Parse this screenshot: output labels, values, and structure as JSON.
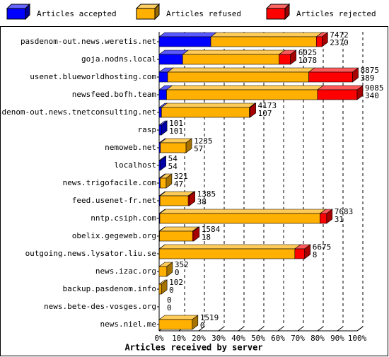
{
  "chart_data": {
    "type": "bar3d",
    "orientation": "horizontal",
    "stacked": true,
    "x_axis_label": "Articles received by server",
    "categories": [
      "pasdenom-out.news.weretis.net",
      "goja.nodns.local",
      "usenet.blueworldhosting.com",
      "newsfeed.bofh.team",
      "pasdenom-out.news.tnetconsulting.net",
      "rasp",
      "nemoweb.net",
      "localhost",
      "news.trigofacile.com",
      "feed.usenet-fr.net",
      "nntp.csiph.com",
      "obelix.gegeweb.org",
      "outgoing.news.lysator.liu.se",
      "news.izac.org",
      "backup.pasdenom.info",
      "news.bete-des-vosges.org",
      "news.niel.me"
    ],
    "totals": [
      7472,
      6025,
      8875,
      9085,
      4173,
      101,
      1235,
      54,
      321,
      1385,
      7683,
      1584,
      6675,
      352,
      102,
      0,
      1519
    ],
    "series": [
      {
        "name": "Articles accepted",
        "color": "#0000ff",
        "values": [
          2370,
          1078,
          389,
          340,
          107,
          101,
          57,
          54,
          47,
          38,
          31,
          18,
          8,
          0,
          0,
          0,
          0
        ]
      },
      {
        "name": "Articles refused",
        "color": "#ffb000",
        "values": [
          4842,
          4427,
          6476,
          6925,
          4036,
          0,
          1178,
          0,
          274,
          1297,
          7352,
          1516,
          6217,
          352,
          102,
          0,
          1519
        ]
      },
      {
        "name": "Articles rejected",
        "color": "#ff0000",
        "values": [
          260,
          520,
          2010,
          1820,
          30,
          0,
          0,
          0,
          0,
          50,
          300,
          50,
          450,
          0,
          0,
          0,
          0
        ]
      }
    ],
    "xlim": [
      0,
      9085
    ],
    "xticks": [
      {
        "value": 0,
        "label": "0%"
      },
      {
        "value": 908.5,
        "label": "10%"
      },
      {
        "value": 1817,
        "label": "20%"
      },
      {
        "value": 2725.5,
        "label": "30%"
      },
      {
        "value": 3634,
        "label": "40%"
      },
      {
        "value": 4542.5,
        "label": "50%"
      },
      {
        "value": 5451,
        "label": "60%"
      },
      {
        "value": 6359.5,
        "label": "70%"
      },
      {
        "value": 7268,
        "label": "80%"
      },
      {
        "value": 8176.5,
        "label": "90%"
      },
      {
        "value": 9085,
        "label": "100%"
      }
    ],
    "grid": true,
    "legend": "top"
  }
}
